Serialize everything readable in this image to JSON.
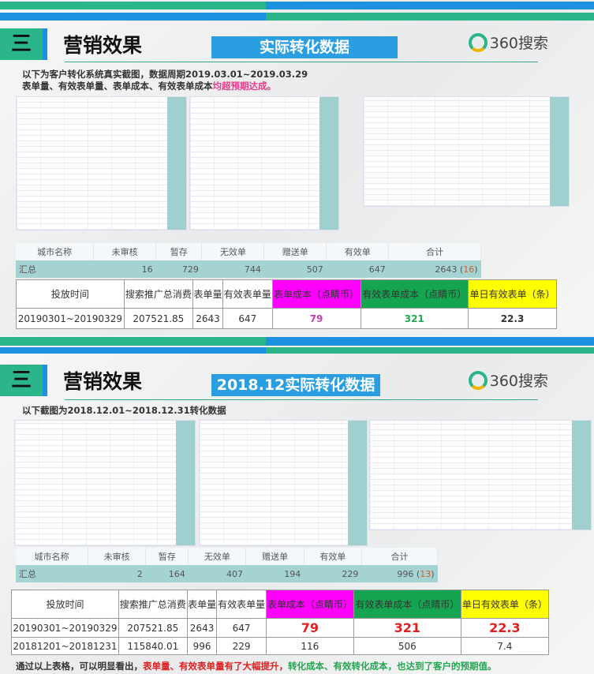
{
  "slide1": {
    "section_number": "三",
    "title": "营销效果",
    "badge": "实际转化数据",
    "logo": "360搜索",
    "line1": "以下为客户转化系统真实截图，数据周期2019.03.01~2019.03.29",
    "line2_prefix": "表单量、有效表单量、表单成本、有效表单成本",
    "line2_highlight": "均超预期达成。",
    "summary_headers": [
      "城市名称",
      "未审核",
      "暂存",
      "无效单",
      "赠送单",
      "有效单",
      "合计"
    ],
    "summary_total": {
      "label": "汇总",
      "values": [
        "16",
        "729",
        "744",
        "507",
        "647"
      ],
      "total": "2643",
      "total_extra": "16"
    },
    "compare_headers": [
      "投放时间",
      "搜索推广总消费",
      "表单量",
      "有效表单量",
      "表单成本（点睛币）",
      "有效表单成本（点睛币）",
      "单日有效表单（条）"
    ],
    "compare_rows": [
      [
        "20190301~20190329",
        "207521.85",
        "2643",
        "647",
        "79",
        "321",
        "22.3"
      ]
    ]
  },
  "slide2": {
    "section_number": "三",
    "title": "营销效果",
    "badge": "2018.12实际转化数据",
    "logo": "360搜索",
    "line1": "以下截图为2018.12.01~2018.12.31转化数据",
    "summary_headers": [
      "城市名称",
      "未审核",
      "暂存",
      "无效单",
      "赠送单",
      "有效单",
      "合计"
    ],
    "summary_total": {
      "label": "汇总",
      "values": [
        "2",
        "164",
        "407",
        "194",
        "229"
      ],
      "total": "996",
      "total_extra": "13"
    },
    "compare_headers": [
      "投放时间",
      "搜索推广总消费",
      "表单量",
      "有效表单量",
      "表单成本（点睛币）",
      "有效表单成本（点睛币）",
      "单日有效表单（条）"
    ],
    "compare_rows": [
      [
        "20190301~20190329",
        "207521.85",
        "2643",
        "647",
        "79",
        "321",
        "22.3"
      ],
      [
        "20181201~20181231",
        "115840.01",
        "996",
        "229",
        "116",
        "506",
        "7.4"
      ]
    ],
    "conclusion": {
      "p1": "通过以上表格，可以明显看出，",
      "p2": "表单量、有效表单量有了大幅提升，",
      "p3": "转化成本、有效转化成本，也达到了客户的预期值。"
    }
  },
  "colors": {
    "green": "#2bb58a",
    "blue": "#1e90e0",
    "magenta": "#ff00ff",
    "dark_green": "#15a550",
    "yellow": "#ffff00",
    "red": "#e02020"
  }
}
